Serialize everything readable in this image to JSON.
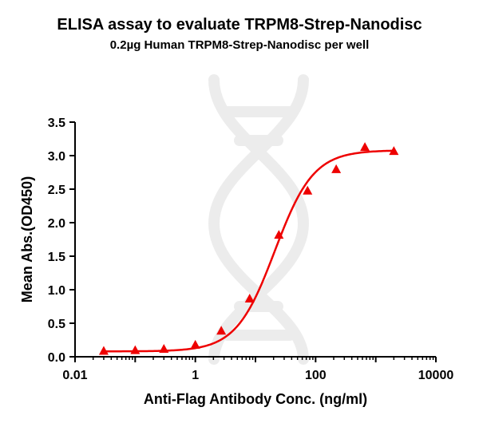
{
  "chart_data": {
    "type": "scatter",
    "title": "ELISA assay to evaluate TRPM8-Strep-Nanodisc",
    "subtitle": "0.2µg Human TRPM8-Strep-Nanodisc per well",
    "xlabel": "Anti-Flag Antibody Conc. (ng/ml)",
    "ylabel": "Mean Abs.(OD450)",
    "xscale": "log",
    "xlim": [
      0.01,
      10000
    ],
    "ylim": [
      0.0,
      3.5
    ],
    "x_ticks": [
      0.01,
      1,
      100,
      10000
    ],
    "x_tick_labels": [
      "0.01",
      "1",
      "100",
      "10000"
    ],
    "y_ticks": [
      0.0,
      0.5,
      1.0,
      1.5,
      2.0,
      2.5,
      3.0,
      3.5
    ],
    "y_tick_labels": [
      "0.0",
      "0.5",
      "1.0",
      "1.5",
      "2.0",
      "2.5",
      "3.0",
      "3.5"
    ],
    "grid": false,
    "legend": "none",
    "series": [
      {
        "marker": "triangle",
        "color": "#ee0000",
        "x": [
          0.03,
          0.1,
          0.3,
          1.0,
          2.7,
          8.0,
          24.5,
          73.5,
          220,
          660,
          2000
        ],
        "y": [
          0.08,
          0.09,
          0.11,
          0.17,
          0.38,
          0.86,
          1.81,
          2.47,
          2.79,
          3.12,
          3.06
        ]
      }
    ],
    "fit_curve": {
      "model": "4PL",
      "color": "#ee0000",
      "bottom": 0.08,
      "top": 3.08,
      "ec50": 21.0,
      "hill": 1.35,
      "x_range": [
        0.03,
        2000
      ]
    }
  }
}
